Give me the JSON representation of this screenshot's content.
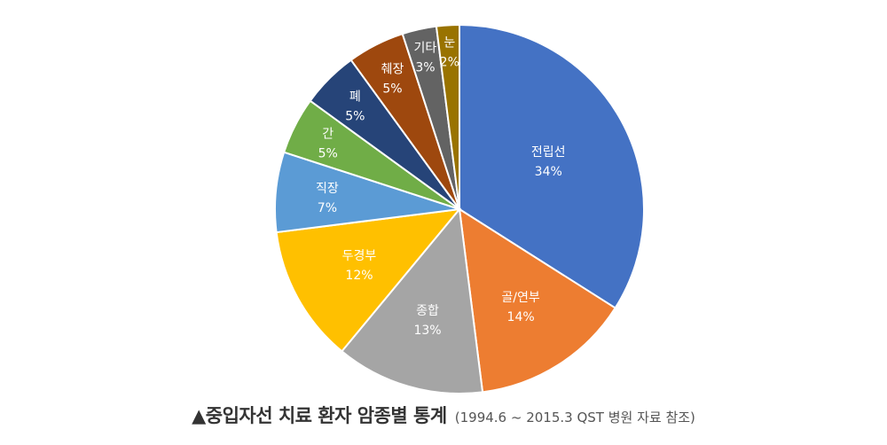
{
  "chart_data": {
    "type": "pie",
    "categories": [
      "전립선",
      "골/연부",
      "종합",
      "두경부",
      "직장",
      "간",
      "폐",
      "췌장",
      "기타",
      "눈"
    ],
    "values": [
      34,
      14,
      13,
      12,
      7,
      5,
      5,
      5,
      3,
      2
    ],
    "value_labels": [
      "34%",
      "14%",
      "13%",
      "12%",
      "7%",
      "5%",
      "5%",
      "5%",
      "3%",
      "2%"
    ],
    "colors": [
      "#4472C4",
      "#ED7D31",
      "#A5A5A5",
      "#FFC000",
      "#5B9BD5",
      "#70AD47",
      "#264478",
      "#9E480E",
      "#636363",
      "#997300"
    ],
    "start_angle_deg": 0,
    "direction": "clockwise",
    "legend": "none"
  },
  "caption": {
    "title": "▲중입자선 치료 환자 암종별 통계",
    "source": "(1994.6 ~ 2015.3 QST 병원 자료 참조)"
  }
}
